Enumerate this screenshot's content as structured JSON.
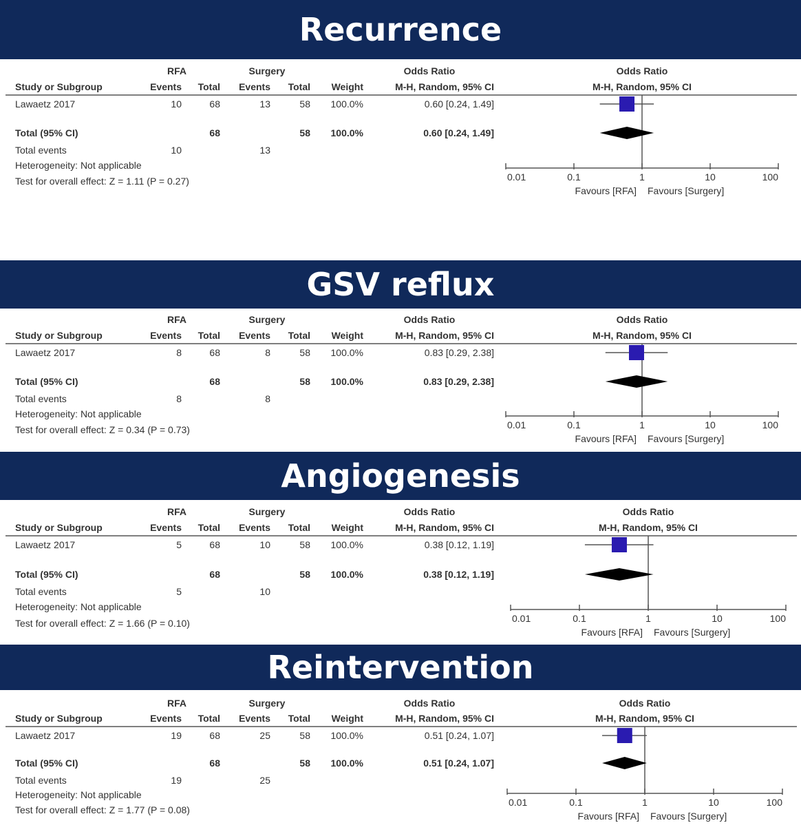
{
  "chart_data": [
    {
      "type": "forest",
      "title": "Recurrence",
      "group_labels": {
        "experimental": "RFA",
        "control": "Surgery"
      },
      "column_headers": {
        "study": "Study or Subgroup",
        "events": "Events",
        "total": "Total",
        "weight": "Weight",
        "effect_group": "Odds Ratio",
        "effect_method": "M-H, Random, 95% CI"
      },
      "study": {
        "name": "Lawaetz 2017",
        "exp_events": "10",
        "exp_total": "68",
        "ctl_events": "13",
        "ctl_total": "58",
        "weight": "100.0%",
        "ci_text": "0.60 [0.24, 1.49]",
        "or": 0.6,
        "lo": 0.24,
        "hi": 1.49
      },
      "total": {
        "label": "Total (95% CI)",
        "exp_total": "68",
        "ctl_total": "58",
        "weight": "100.0%",
        "ci_text": "0.60 [0.24, 1.49]",
        "or": 0.6,
        "lo": 0.24,
        "hi": 1.49
      },
      "total_events": {
        "label": "Total events",
        "exp": "10",
        "ctl": "13"
      },
      "heterogeneity": "Heterogeneity: Not applicable",
      "overall_effect": "Test for overall effect: Z = 1.11 (P = 0.27)",
      "axis": {
        "scale": "log",
        "ticks": [
          "0.01",
          "0.1",
          "1",
          "10",
          "100"
        ],
        "xlim": [
          0.01,
          100
        ]
      },
      "favours": {
        "left": "Favours [RFA]",
        "right": "Favours [Surgery]"
      }
    },
    {
      "type": "forest",
      "title": "GSV reflux",
      "group_labels": {
        "experimental": "RFA",
        "control": "Surgery"
      },
      "column_headers": {
        "study": "Study or Subgroup",
        "events": "Events",
        "total": "Total",
        "weight": "Weight",
        "effect_group": "Odds Ratio",
        "effect_method": "M-H, Random, 95% CI"
      },
      "study": {
        "name": "Lawaetz 2017",
        "exp_events": "8",
        "exp_total": "68",
        "ctl_events": "8",
        "ctl_total": "58",
        "weight": "100.0%",
        "ci_text": "0.83 [0.29, 2.38]",
        "or": 0.83,
        "lo": 0.29,
        "hi": 2.38
      },
      "total": {
        "label": "Total (95% CI)",
        "exp_total": "68",
        "ctl_total": "58",
        "weight": "100.0%",
        "ci_text": "0.83 [0.29, 2.38]",
        "or": 0.83,
        "lo": 0.29,
        "hi": 2.38
      },
      "total_events": {
        "label": "Total events",
        "exp": "8",
        "ctl": "8"
      },
      "heterogeneity": "Heterogeneity: Not applicable",
      "overall_effect": "Test for overall effect: Z = 0.34 (P = 0.73)",
      "axis": {
        "scale": "log",
        "ticks": [
          "0.01",
          "0.1",
          "1",
          "10",
          "100"
        ],
        "xlim": [
          0.01,
          100
        ]
      },
      "favours": {
        "left": "Favours [RFA]",
        "right": "Favours [Surgery]"
      }
    },
    {
      "type": "forest",
      "title": "Angiogenesis",
      "group_labels": {
        "experimental": "RFA",
        "control": "Surgery"
      },
      "column_headers": {
        "study": "Study or Subgroup",
        "events": "Events",
        "total": "Total",
        "weight": "Weight",
        "effect_group": "Odds Ratio",
        "effect_method": "M-H, Random, 95% CI"
      },
      "study": {
        "name": "Lawaetz 2017",
        "exp_events": "5",
        "exp_total": "68",
        "ctl_events": "10",
        "ctl_total": "58",
        "weight": "100.0%",
        "ci_text": "0.38 [0.12, 1.19]",
        "or": 0.38,
        "lo": 0.12,
        "hi": 1.19
      },
      "total": {
        "label": "Total (95% CI)",
        "exp_total": "68",
        "ctl_total": "58",
        "weight": "100.0%",
        "ci_text": "0.38 [0.12, 1.19]",
        "or": 0.38,
        "lo": 0.12,
        "hi": 1.19
      },
      "total_events": {
        "label": "Total events",
        "exp": "5",
        "ctl": "10"
      },
      "heterogeneity": "Heterogeneity: Not applicable",
      "overall_effect": "Test for overall effect: Z = 1.66 (P = 0.10)",
      "axis": {
        "scale": "log",
        "ticks": [
          "0.01",
          "0.1",
          "1",
          "10",
          "100"
        ],
        "xlim": [
          0.01,
          100
        ]
      },
      "favours": {
        "left": "Favours [RFA]",
        "right": "Favours [Surgery]"
      }
    },
    {
      "type": "forest",
      "title": "Reintervention",
      "group_labels": {
        "experimental": "RFA",
        "control": "Surgery"
      },
      "column_headers": {
        "study": "Study or Subgroup",
        "events": "Events",
        "total": "Total",
        "weight": "Weight",
        "effect_group": "Odds Ratio",
        "effect_method": "M-H, Random, 95% CI"
      },
      "study": {
        "name": "Lawaetz 2017",
        "exp_events": "19",
        "exp_total": "68",
        "ctl_events": "25",
        "ctl_total": "58",
        "weight": "100.0%",
        "ci_text": "0.51 [0.24, 1.07]",
        "or": 0.51,
        "lo": 0.24,
        "hi": 1.07
      },
      "total": {
        "label": "Total (95% CI)",
        "exp_total": "68",
        "ctl_total": "58",
        "weight": "100.0%",
        "ci_text": "0.51 [0.24, 1.07]",
        "or": 0.51,
        "lo": 0.24,
        "hi": 1.07
      },
      "total_events": {
        "label": "Total events",
        "exp": "19",
        "ctl": "25"
      },
      "heterogeneity": "Heterogeneity: Not applicable",
      "overall_effect": "Test for overall effect: Z = 1.77 (P = 0.08)",
      "axis": {
        "scale": "log",
        "ticks": [
          "0.01",
          "0.1",
          "1",
          "10",
          "100"
        ],
        "xlim": [
          0.01,
          100
        ]
      },
      "favours": {
        "left": "Favours [RFA]",
        "right": "Favours [Surgery]"
      }
    }
  ],
  "colors": {
    "banner_bg": "#10295a",
    "banner_text": "#ffffff",
    "study_marker": "#2a1bb0",
    "diamond": "#000000",
    "text": "#333333",
    "rule": "#555555"
  }
}
